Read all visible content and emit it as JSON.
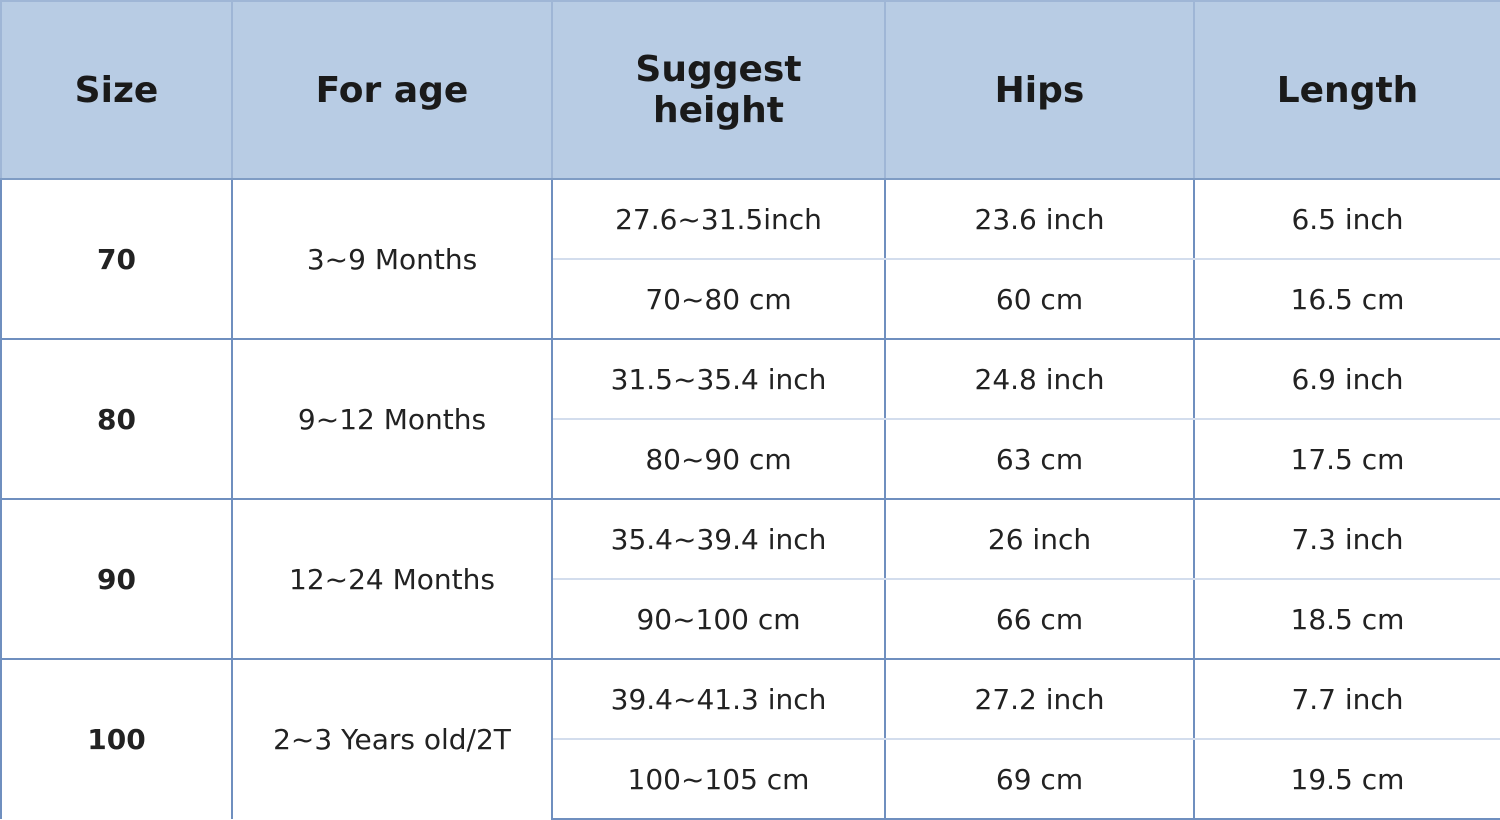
{
  "table": {
    "header": [
      "Size",
      "For age",
      "Suggest height",
      "Hips",
      "Length"
    ],
    "rows": [
      {
        "size": "70",
        "age": "3~9 Months",
        "lines": [
          [
            "27.6~31.5inch",
            "23.6 inch",
            "6.5 inch"
          ],
          [
            "70~80 cm",
            "60 cm",
            "16.5 cm"
          ]
        ]
      },
      {
        "size": "80",
        "age": "9~12 Months",
        "lines": [
          [
            "31.5~35.4 inch",
            "24.8 inch",
            "6.9 inch"
          ],
          [
            "80~90 cm",
            "63 cm",
            "17.5 cm"
          ]
        ]
      },
      {
        "size": "90",
        "age": "12~24 Months",
        "lines": [
          [
            "35.4~39.4 inch",
            "26 inch",
            "7.3 inch"
          ],
          [
            "90~100 cm",
            "66 cm",
            "18.5 cm"
          ]
        ]
      },
      {
        "size": "100",
        "age": "2~3 Years old/2T",
        "lines": [
          [
            "39.4~41.3 inch",
            "27.2 inch",
            "7.7 inch"
          ],
          [
            "100~105 cm",
            "69 cm",
            "19.5 cm"
          ]
        ]
      }
    ]
  }
}
